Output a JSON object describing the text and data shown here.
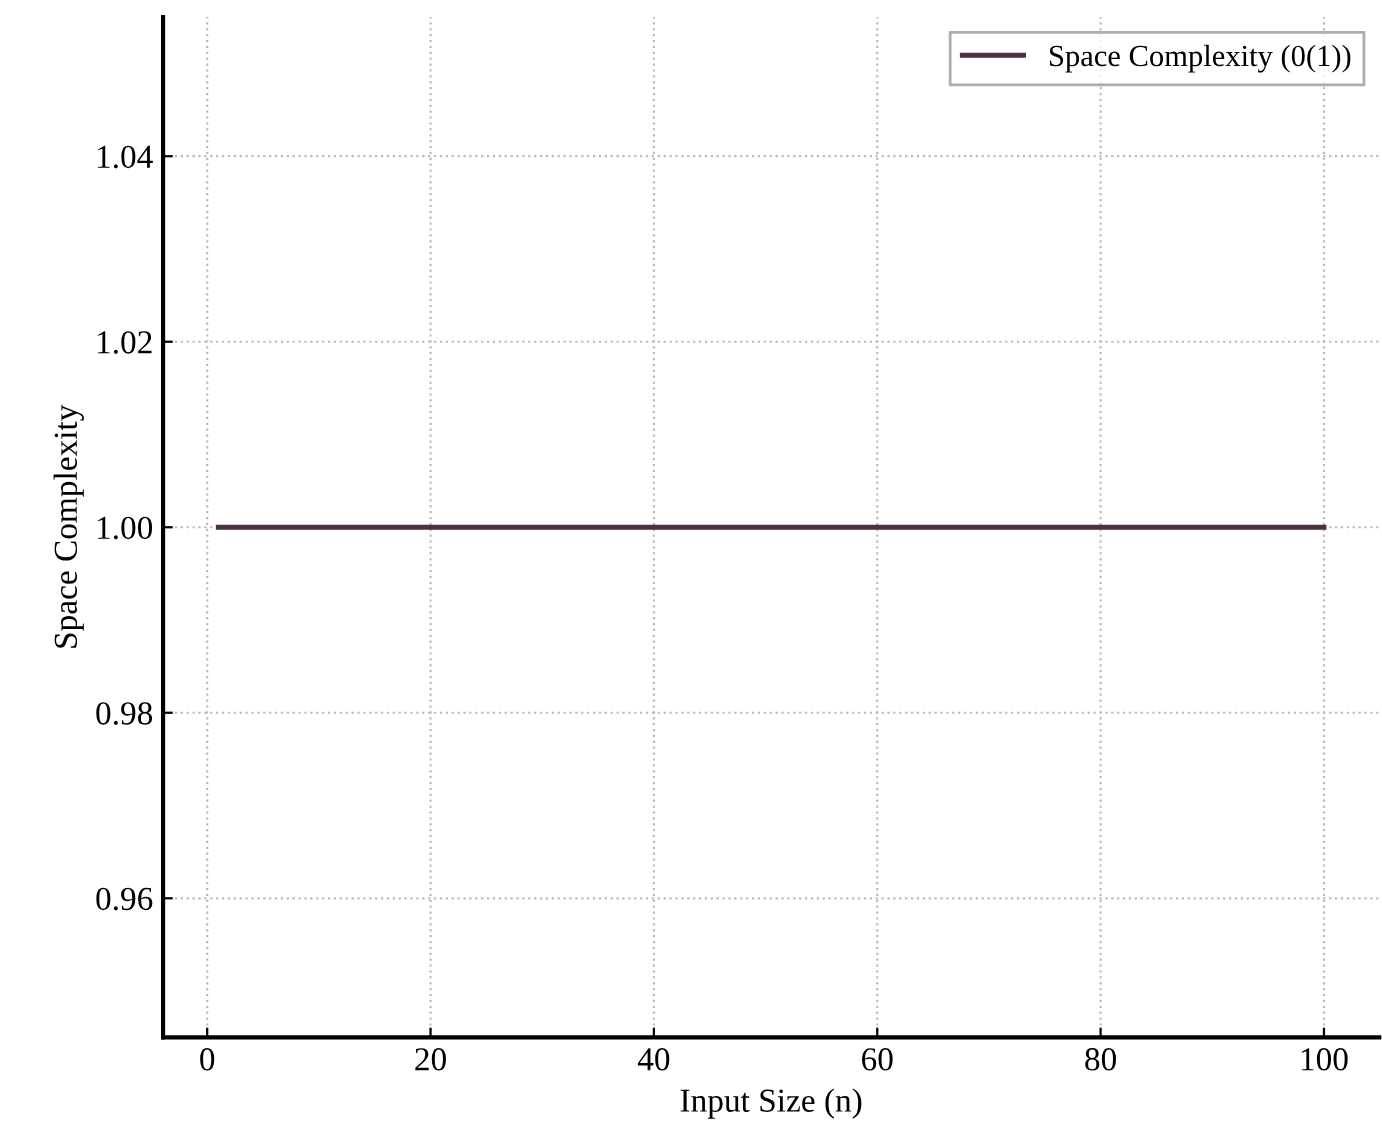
{
  "chart_data": {
    "type": "line",
    "xlabel": "Input Size (n)",
    "ylabel": "Space Complexity",
    "x": [
      1,
      100
    ],
    "series": [
      {
        "name": "Space Complexity (0(1))",
        "color": "#4b2f42",
        "values": [
          1.0,
          1.0
        ]
      }
    ],
    "xlim": [
      -3.95,
      104.95
    ],
    "xticks": [
      0,
      20,
      40,
      60,
      80,
      100
    ],
    "ylim": [
      0.945,
      1.055
    ],
    "yticks": [
      {
        "value": 0.96,
        "label": "0.96"
      },
      {
        "value": 0.98,
        "label": "0.98"
      },
      {
        "value": 1.0,
        "label": "1.00"
      },
      {
        "value": 1.02,
        "label": "1.02"
      },
      {
        "value": 1.04,
        "label": "1.04"
      }
    ],
    "grid": true,
    "legend": "top right",
    "line_style": "solid",
    "marker": "none"
  }
}
